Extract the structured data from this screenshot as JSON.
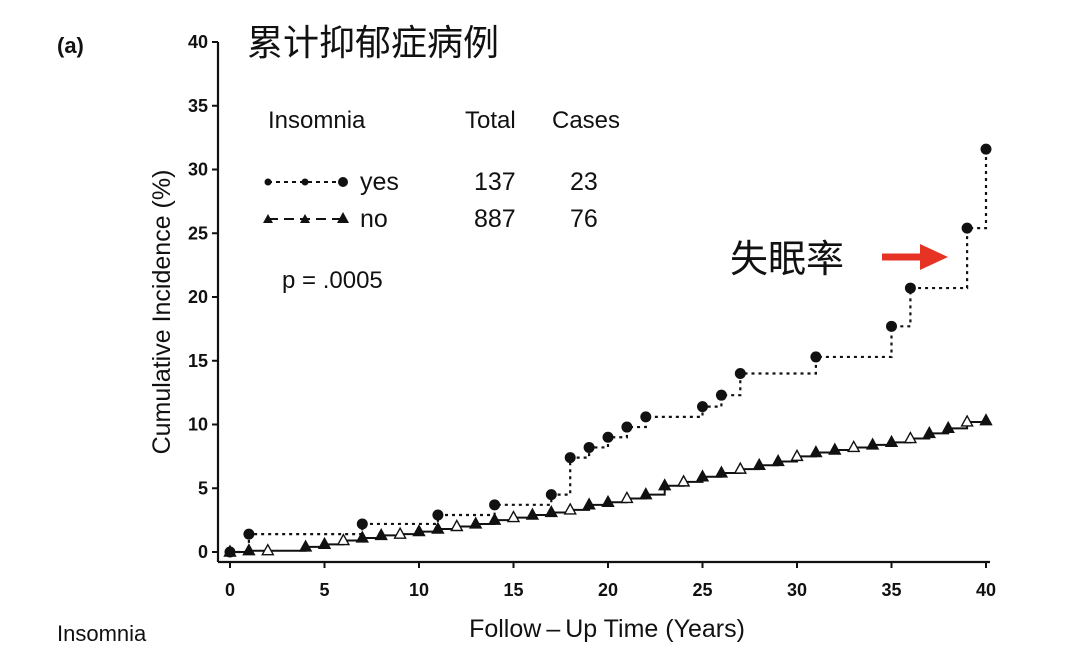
{
  "panel_label": "(a)",
  "bottom_label": "Insomnia",
  "annotations": {
    "top_chinese": "累计抑郁症病例",
    "right_chinese": "失眠率",
    "annotation_color": "#e63323",
    "top_color": "#c0241a"
  },
  "legend": {
    "header": {
      "group": "Insomnia",
      "total": "Total",
      "cases": "Cases"
    },
    "rows": [
      {
        "label": "yes",
        "total": "137",
        "cases": "23",
        "marker": "circle",
        "dash": "dotted"
      },
      {
        "label": "no",
        "total": "887",
        "cases": "76",
        "marker": "triangle",
        "dash": "dashed"
      }
    ],
    "p_value": "p = .0005"
  },
  "chart_data": {
    "type": "line",
    "xlabel": "Follow – Up Time (Years)",
    "ylabel": "Cumulative Incidence (%)",
    "xlim": [
      0,
      40
    ],
    "ylim": [
      0,
      40
    ],
    "xticks": [
      0,
      5,
      10,
      15,
      20,
      25,
      30,
      35,
      40
    ],
    "yticks": [
      0,
      5,
      10,
      15,
      20,
      25,
      30,
      35,
      40
    ],
    "grid": false,
    "legend_position": "top-left",
    "series": [
      {
        "name": "yes",
        "step": true,
        "marker": "circle",
        "x": [
          0,
          1,
          7,
          11,
          14,
          17,
          18,
          19,
          20,
          21,
          22,
          25,
          26,
          27,
          31,
          35,
          36,
          39,
          40
        ],
        "y": [
          0,
          1.4,
          2.2,
          2.9,
          3.7,
          4.5,
          7.4,
          8.2,
          9.0,
          9.8,
          10.6,
          11.4,
          12.3,
          14.0,
          15.3,
          17.7,
          20.7,
          25.4,
          31.6
        ]
      },
      {
        "name": "no",
        "step": true,
        "marker": "triangle",
        "x": [
          0,
          1,
          2,
          4,
          5,
          6,
          7,
          8,
          9,
          10,
          11,
          12,
          13,
          14,
          15,
          16,
          17,
          18,
          19,
          20,
          21,
          22,
          23,
          24,
          25,
          26,
          27,
          28,
          29,
          30,
          31,
          32,
          33,
          34,
          35,
          36,
          37,
          38,
          39,
          40
        ],
        "y": [
          0,
          0.1,
          0.1,
          0.4,
          0.6,
          0.9,
          1.1,
          1.3,
          1.4,
          1.6,
          1.8,
          2.0,
          2.2,
          2.5,
          2.7,
          2.9,
          3.1,
          3.3,
          3.7,
          3.9,
          4.2,
          4.5,
          5.2,
          5.5,
          5.9,
          6.2,
          6.5,
          6.8,
          7.1,
          7.5,
          7.8,
          8.0,
          8.2,
          8.4,
          8.6,
          8.9,
          9.3,
          9.7,
          10.2,
          10.3
        ]
      }
    ]
  }
}
